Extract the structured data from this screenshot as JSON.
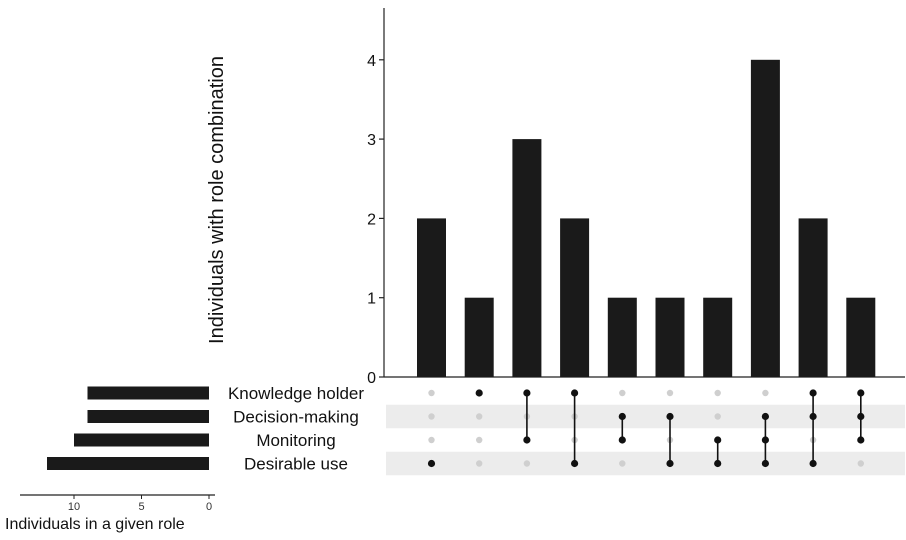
{
  "chart_data": {
    "type": "upset",
    "ylabel": "Individuals with role combination",
    "ylim": [
      0,
      4.5
    ],
    "yticks": [
      "0",
      "1",
      "2",
      "3",
      "4"
    ],
    "sets": [
      "Knowledge holder",
      "Decision-making",
      "Monitoring",
      "Desirable use"
    ],
    "intersections": [
      {
        "members": [
          "Desirable use"
        ],
        "value": 2
      },
      {
        "members": [
          "Knowledge holder"
        ],
        "value": 1
      },
      {
        "members": [
          "Knowledge holder",
          "Monitoring"
        ],
        "value": 3
      },
      {
        "members": [
          "Knowledge holder",
          "Desirable use"
        ],
        "value": 2
      },
      {
        "members": [
          "Decision-making",
          "Monitoring"
        ],
        "value": 1
      },
      {
        "members": [
          "Decision-making",
          "Desirable use"
        ],
        "value": 1
      },
      {
        "members": [
          "Monitoring",
          "Desirable use"
        ],
        "value": 1
      },
      {
        "members": [
          "Decision-making",
          "Monitoring",
          "Desirable use"
        ],
        "value": 4
      },
      {
        "members": [
          "Knowledge holder",
          "Decision-making",
          "Desirable use"
        ],
        "value": 2
      },
      {
        "members": [
          "Knowledge holder",
          "Decision-making",
          "Monitoring"
        ],
        "value": 1
      }
    ],
    "set_sizes": {
      "xlabel": "Individuals in a given role",
      "values": [
        9,
        9,
        10,
        12
      ],
      "xlim": [
        12.5,
        0
      ],
      "xticks": [
        "10",
        "5",
        "0"
      ]
    },
    "colors": {
      "bar": "#1a1a1a",
      "dot_active": "#111111",
      "dot_inactive": "#cfcfcf",
      "stripe": "#ececec"
    }
  }
}
